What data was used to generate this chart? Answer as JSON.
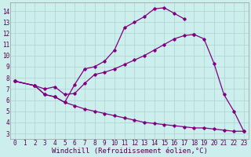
{
  "xlabel": "Windchill (Refroidissement éolien,°C)",
  "background_color": "#cceeed",
  "line_color": "#800080",
  "xlim": [
    -0.5,
    23.5
  ],
  "ylim": [
    2.5,
    14.8
  ],
  "xticks": [
    0,
    1,
    2,
    3,
    4,
    5,
    6,
    7,
    8,
    9,
    10,
    11,
    12,
    13,
    14,
    15,
    16,
    17,
    18,
    19,
    20,
    21,
    22,
    23
  ],
  "yticks": [
    3,
    4,
    5,
    6,
    7,
    8,
    9,
    10,
    11,
    12,
    13,
    14
  ],
  "line1_x": [
    0,
    2,
    3,
    4,
    5,
    6,
    7,
    8,
    9,
    10,
    11,
    12,
    13,
    14,
    15,
    16,
    17
  ],
  "line1_y": [
    7.7,
    7.3,
    6.5,
    6.3,
    5.8,
    7.4,
    8.8,
    9.0,
    9.5,
    10.5,
    12.5,
    13.0,
    13.5,
    14.2,
    14.3,
    13.8,
    13.3
  ],
  "line2_x": [
    0,
    2,
    3,
    4,
    5,
    6,
    7,
    8,
    9,
    10,
    11,
    12,
    13,
    14,
    15,
    16,
    17,
    18
  ],
  "line2_y": [
    7.7,
    7.3,
    7.0,
    7.2,
    6.5,
    6.6,
    7.5,
    8.3,
    8.5,
    8.8,
    9.2,
    9.6,
    10.0,
    10.5,
    11.0,
    11.5,
    11.8,
    11.9
  ],
  "line3_x": [
    0,
    2,
    3,
    4,
    5,
    6,
    7,
    8,
    9,
    10,
    11,
    12,
    13,
    14,
    15,
    16,
    17,
    18,
    19,
    20,
    21,
    22,
    23
  ],
  "line3_y": [
    7.7,
    7.3,
    6.5,
    6.3,
    5.8,
    5.5,
    5.2,
    5.0,
    4.8,
    4.6,
    4.4,
    4.2,
    4.0,
    3.9,
    3.8,
    3.7,
    3.6,
    3.5,
    3.5,
    3.4,
    3.3,
    3.2,
    3.2
  ],
  "line2b_x": [
    18,
    19,
    20,
    21,
    22,
    23
  ],
  "line2b_y": [
    11.9,
    11.5,
    9.3,
    6.5,
    5.0,
    3.2
  ],
  "marker": "D",
  "marker_size": 1.8,
  "line_width": 0.9,
  "grid_color": "#aad4d0",
  "tick_fontsize": 5.5,
  "xlabel_fontsize": 6.5
}
